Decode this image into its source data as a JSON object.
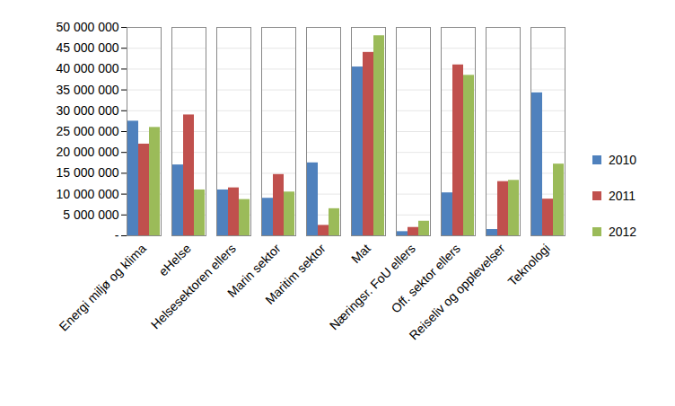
{
  "chart_data": {
    "type": "bar",
    "categories": [
      "Energi miljø og klima",
      "eHelse",
      "Helsesektoren ellers",
      "Marin sektor",
      "Maritim sektor",
      "Mat",
      "Næringsr. FoU ellers",
      "Off. sektor ellers",
      "Reiseliv og opplevelser",
      "Teknologi"
    ],
    "series": [
      {
        "name": "2010",
        "color": "#4f81bd",
        "values": [
          27500000,
          17000000,
          11000000,
          9000000,
          17500000,
          40500000,
          1000000,
          10300000,
          1500000,
          34300000
        ]
      },
      {
        "name": "2011",
        "color": "#c0504d",
        "values": [
          22000000,
          29000000,
          11500000,
          14700000,
          2500000,
          44000000,
          2000000,
          41000000,
          13000000,
          8800000
        ]
      },
      {
        "name": "2012",
        "color": "#9bbb59",
        "values": [
          26000000,
          11000000,
          8700000,
          10500000,
          6500000,
          48000000,
          3500000,
          38500000,
          13300000,
          17200000
        ]
      }
    ],
    "ylim": [
      0,
      50000000
    ],
    "yticks": [
      {
        "value": 0,
        "label": "-"
      },
      {
        "value": 5000000,
        "label": "5 000 000"
      },
      {
        "value": 10000000,
        "label": "10 000 000"
      },
      {
        "value": 15000000,
        "label": "15 000 000"
      },
      {
        "value": 20000000,
        "label": "20 000 000"
      },
      {
        "value": 25000000,
        "label": "25 000 000"
      },
      {
        "value": 30000000,
        "label": "30 000 000"
      },
      {
        "value": 35000000,
        "label": "35 000 000"
      },
      {
        "value": 40000000,
        "label": "40 000 000"
      },
      {
        "value": 45000000,
        "label": "45 000 000"
      },
      {
        "value": 50000000,
        "label": "50 000 000"
      }
    ],
    "grid": true,
    "legend": "right"
  }
}
